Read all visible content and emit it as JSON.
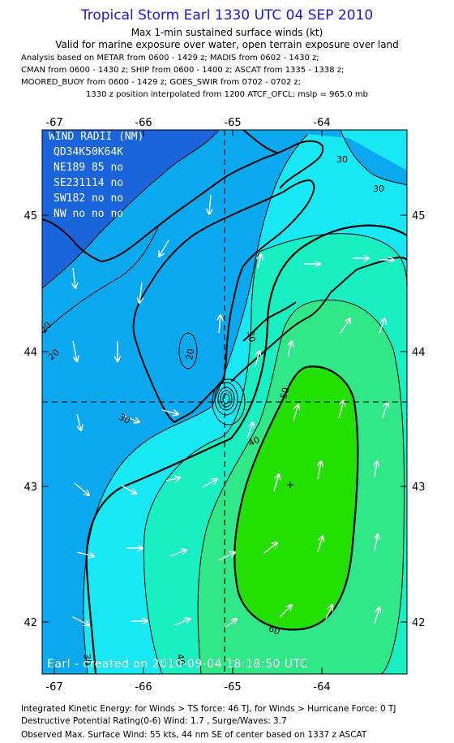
{
  "header": {
    "title": "Tropical Storm Earl 1330 UTC 04 SEP 2010",
    "subtitle": "Max 1-min sustained surface winds (kt)",
    "validity": "Valid for marine exposure over water, open terrain exposure over land"
  },
  "analysis_lines": [
    "Analysis based on METAR from 0600 - 1429 z; MADIS from 0602 - 1430 z;",
    "CMAN from 0600 - 1430 z; SHIP from 0600 - 1400 z; ASCAT from 1335 - 1338 z;",
    "MOORED_BUOY from 0600 - 1429 z; GOES_SWIR from 0702 - 0702 z;"
  ],
  "position_note": "1330 z position interpolated from 1200 ATCF_OFCL; mslp = 965.0 mb",
  "map": {
    "lon_ticks": [
      "-67",
      "-66",
      "-65",
      "-64"
    ],
    "lat_ticks": [
      "45",
      "44",
      "43",
      "42"
    ],
    "contour_labels": [
      "20",
      "20",
      "20",
      "30",
      "30",
      "30",
      "30",
      "30",
      "40",
      "40",
      "50",
      "60"
    ],
    "wind_radii": {
      "title": "WIND RADII (NM)",
      "header": "QD34K50K64K",
      "rows": [
        "NE189 85 no",
        "SE231114 no",
        "SW182 no no",
        "NW no no no"
      ]
    },
    "credit": "Earl - created on 2010-09-04 18:18:50 UTC",
    "colors": {
      "lt20": "#1a64dc",
      "c20_30": "#0aa8ee",
      "c30_40": "#18e8f4",
      "c40_50": "#18f0c4",
      "c50_60": "#30e888",
      "ge60": "#22e000"
    }
  },
  "footer": {
    "ike": "Integrated Kinetic Energy:  for Winds > TS force: 46 TJ,  for Winds > Hurricane Force: 0 TJ",
    "dpr": "Destructive Potential Rating(0-6)   Wind: 1.7 , Surge/Waves: 3.7",
    "observed": "Observed Max. Surface Wind: 55 kts, 44 nm SE of center based on 1337 z ASCAT"
  }
}
